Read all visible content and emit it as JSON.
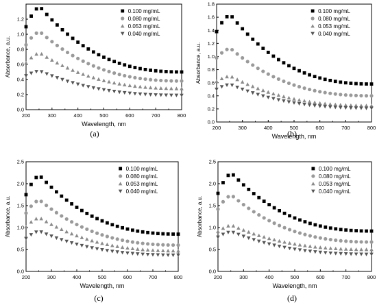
{
  "chart_data": [
    {
      "type": "scatter",
      "panel_label": "(a)",
      "xlabel": "Wavelength, nm",
      "ylabel": "Absorbance, a.u.",
      "xlim": [
        200,
        800
      ],
      "ylim": [
        0,
        1.4
      ],
      "xticks": [
        "200",
        "300",
        "400",
        "500",
        "600",
        "700",
        "800"
      ],
      "yticks": [
        "0.0",
        "0.2",
        "0.4",
        "0.6",
        "0.8",
        "1.0",
        "1.2"
      ],
      "legend_position": "top-right",
      "series": [
        {
          "name": "0.100 mg/mL",
          "marker": "square",
          "color": "#000000",
          "peak": 1.36,
          "end": 0.5,
          "start": 1.1
        },
        {
          "name": "0.080 mg/mL",
          "marker": "circle",
          "color": "#9a9a9a",
          "peak": 1.03,
          "end": 0.38,
          "start": 0.86
        },
        {
          "name": "0.053 mg/mL",
          "marker": "triangle-up",
          "color": "#8a8a8a",
          "peak": 0.75,
          "end": 0.28,
          "start": 0.62
        },
        {
          "name": "0.040 mg/mL",
          "marker": "triangle-down",
          "color": "#555555",
          "peak": 0.51,
          "end": 0.19,
          "start": 0.45
        }
      ]
    },
    {
      "type": "scatter",
      "panel_label": "(b)",
      "xlabel": "Wavelength, nm",
      "ylabel": "Absorbance, a.u.",
      "xlim": [
        200,
        800
      ],
      "ylim": [
        0,
        1.8
      ],
      "xticks": [
        "200",
        "300",
        "400",
        "500",
        "600",
        "700",
        "800"
      ],
      "yticks": [
        "0.0",
        "0.2",
        "0.4",
        "0.6",
        "0.8",
        "1.0",
        "1.2",
        "1.4",
        "1.6",
        "1.8"
      ],
      "legend_position": "top-right",
      "series": [
        {
          "name": "0.100 mg/mL",
          "marker": "square",
          "color": "#000000",
          "peak": 1.63,
          "end": 0.58,
          "start": 1.38
        },
        {
          "name": "0.080 mg/mL",
          "marker": "circle",
          "color": "#9a9a9a",
          "peak": 1.12,
          "end": 0.4,
          "start": 0.98
        },
        {
          "name": "0.053 mg/mL",
          "marker": "triangle-up",
          "color": "#8a8a8a",
          "peak": 0.7,
          "end": 0.25,
          "start": 0.62
        },
        {
          "name": "0.040 mg/mL",
          "marker": "triangle-down",
          "color": "#555555",
          "peak": 0.57,
          "end": 0.21,
          "start": 0.5
        }
      ]
    },
    {
      "type": "scatter",
      "panel_label": "(c)",
      "xlabel": "Wavelength, nm",
      "ylabel": "Absorbance, a.u.",
      "xlim": [
        200,
        800
      ],
      "ylim": [
        0,
        2.5
      ],
      "xticks": [
        "200",
        "300",
        "400",
        "500",
        "600",
        "700",
        "800"
      ],
      "yticks": [
        "0.0",
        "0.5",
        "1.0",
        "1.5",
        "2.0",
        "2.5"
      ],
      "legend_position": "top-right",
      "series": [
        {
          "name": "0.100 mg/mL",
          "marker": "square",
          "color": "#000000",
          "peak": 2.18,
          "end": 0.85,
          "start": 1.75
        },
        {
          "name": "0.080 mg/mL",
          "marker": "circle",
          "color": "#9a9a9a",
          "peak": 1.62,
          "end": 0.6,
          "start": 1.33
        },
        {
          "name": "0.053 mg/mL",
          "marker": "triangle-up",
          "color": "#8a8a8a",
          "peak": 1.22,
          "end": 0.47,
          "start": 1.02
        },
        {
          "name": "0.040 mg/mL",
          "marker": "triangle-down",
          "color": "#555555",
          "peak": 0.91,
          "end": 0.37,
          "start": 0.75
        }
      ]
    },
    {
      "type": "scatter",
      "panel_label": "(d)",
      "xlabel": "Wavelength, nm",
      "ylabel": "Absorbance, a.u.",
      "xlim": [
        200,
        800
      ],
      "ylim": [
        0,
        2.5
      ],
      "xticks": [
        "200",
        "300",
        "400",
        "500",
        "600",
        "700",
        "800"
      ],
      "yticks": [
        "0.0",
        "0.5",
        "1.0",
        "1.5",
        "2.0",
        "2.5"
      ],
      "legend_position": "top-right",
      "series": [
        {
          "name": "0.100 mg/mL",
          "marker": "square",
          "color": "#000000",
          "peak": 2.23,
          "end": 0.92,
          "start": 1.78
        },
        {
          "name": "0.080 mg/mL",
          "marker": "circle",
          "color": "#9a9a9a",
          "peak": 1.73,
          "end": 0.67,
          "start": 1.42
        },
        {
          "name": "0.053 mg/mL",
          "marker": "triangle-up",
          "color": "#8a8a8a",
          "peak": 1.05,
          "end": 0.5,
          "start": 0.91
        },
        {
          "name": "0.040 mg/mL",
          "marker": "triangle-down",
          "color": "#555555",
          "peak": 0.9,
          "end": 0.39,
          "start": 0.78
        }
      ]
    }
  ]
}
